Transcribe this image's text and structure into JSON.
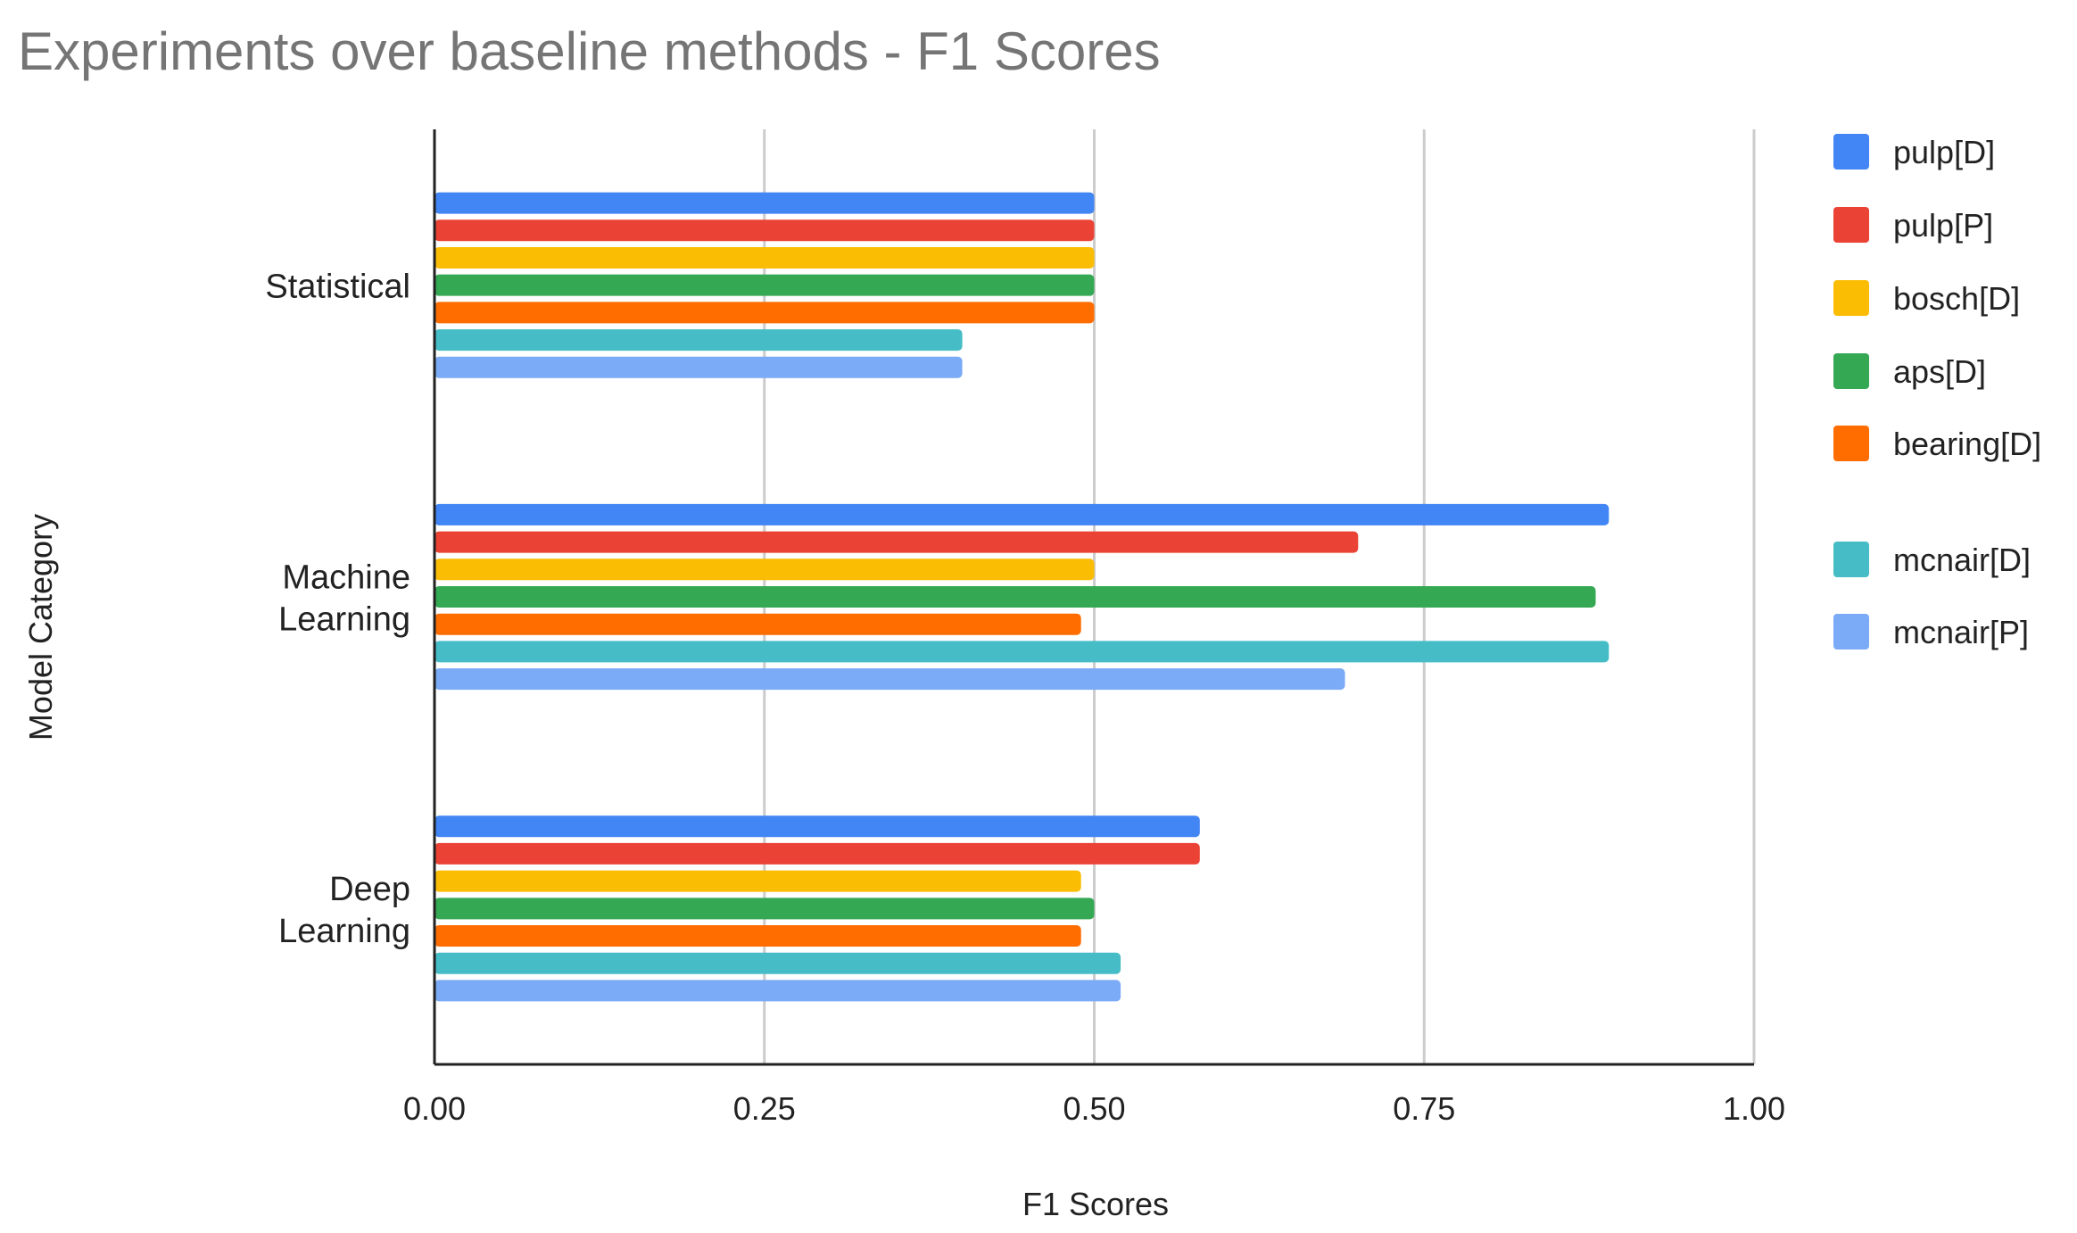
{
  "chart_data": {
    "type": "bar",
    "orientation": "horizontal",
    "title": "Experiments over baseline methods - F1 Scores",
    "xlabel": "F1 Scores",
    "ylabel": "Model Category",
    "xlim": [
      0,
      1
    ],
    "xticks": [
      0,
      0.25,
      0.5,
      0.75,
      1
    ],
    "xtick_labels": [
      "0.00",
      "0.25",
      "0.50",
      "0.75",
      "1.00"
    ],
    "grid": true,
    "legend_position": "right",
    "categories": [
      {
        "lines": [
          "Statistical"
        ]
      },
      {
        "lines": [
          "Machine",
          "Learning"
        ]
      },
      {
        "lines": [
          "Deep",
          "Learning"
        ]
      }
    ],
    "series": [
      {
        "name": "pulp[D]",
        "color": "#4285F4",
        "values": [
          0.5,
          0.89,
          0.58
        ]
      },
      {
        "name": "pulp[P]",
        "color": "#EA4335",
        "values": [
          0.5,
          0.7,
          0.58
        ]
      },
      {
        "name": "bosch[D]",
        "color": "#FBBC04",
        "values": [
          0.5,
          0.5,
          0.49
        ]
      },
      {
        "name": "aps[D]",
        "color": "#34A853",
        "values": [
          0.5,
          0.88,
          0.5
        ]
      },
      {
        "name": "bearing[D]",
        "color": "#FF6D01",
        "values": [
          0.5,
          0.49,
          0.49
        ]
      },
      {
        "name": "mcnair[D]",
        "color": "#46BDC6",
        "values": [
          0.4,
          0.89,
          0.52
        ]
      },
      {
        "name": "mcnair[P]",
        "color": "#7BAAF7",
        "values": [
          0.4,
          0.69,
          0.52
        ]
      }
    ]
  }
}
